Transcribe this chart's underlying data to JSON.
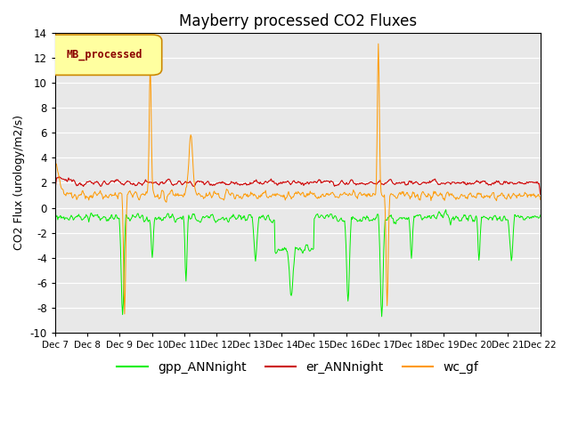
{
  "title": "Mayberry processed CO2 Fluxes",
  "ylabel": "CO2 Flux (urology/m2/s)",
  "ylim": [
    -10,
    14
  ],
  "yticks": [
    -10,
    -8,
    -6,
    -4,
    -2,
    0,
    2,
    4,
    6,
    8,
    10,
    12,
    14
  ],
  "xlabels": [
    "Dec 7",
    "Dec 8",
    "Dec 9",
    "Dec 10",
    "Dec 11",
    "Dec 12",
    "Dec 13",
    "Dec 14",
    "Dec 15",
    "Dec 16",
    "Dec 17",
    "Dec 18",
    "Dec 19",
    "Dec 20",
    "Dec 21",
    "Dec 22"
  ],
  "legend_label": "MB_processed",
  "series_labels": [
    "gpp_ANNnight",
    "er_ANNnight",
    "wc_gf"
  ],
  "series_colors": [
    "#00ee00",
    "#cc0000",
    "#ff9900"
  ],
  "background_color": "#e8e8e8",
  "fig_background": "#ffffff",
  "title_fontsize": 12,
  "axis_fontsize": 9,
  "legend_fontsize": 10,
  "mb_box_color": "#ffffa0",
  "mb_edge_color": "#cc8800",
  "mb_text_color": "#8b0000"
}
